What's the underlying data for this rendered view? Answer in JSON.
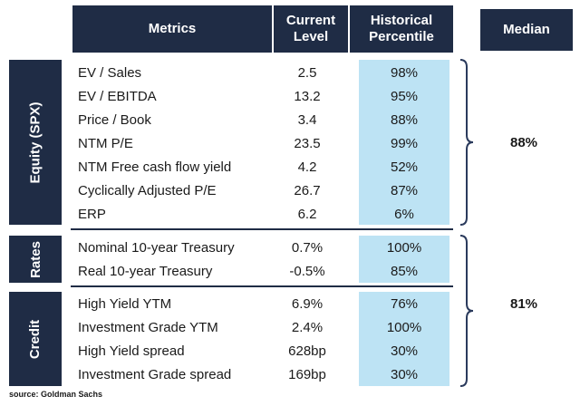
{
  "headers": {
    "metrics": "Metrics",
    "current_level_line1": "Current",
    "current_level_line2": "Level",
    "historical_percentile_line1": "Historical",
    "historical_percentile_line2": "Percentile",
    "median": "Median"
  },
  "sections": {
    "equity": {
      "label": "Equity (SPX)",
      "median": "88%",
      "rows": [
        {
          "metric": "EV / Sales",
          "current": "2.5",
          "percentile": "98%"
        },
        {
          "metric": "EV / EBITDA",
          "current": "13.2",
          "percentile": "95%"
        },
        {
          "metric": "Price / Book",
          "current": "3.4",
          "percentile": "88%"
        },
        {
          "metric": "NTM P/E",
          "current": "23.5",
          "percentile": "99%"
        },
        {
          "metric": "NTM Free cash flow yield",
          "current": "4.2",
          "percentile": "52%"
        },
        {
          "metric": "Cyclically Adjusted P/E",
          "current": "26.7",
          "percentile": "87%"
        },
        {
          "metric": "ERP",
          "current": "6.2",
          "percentile": "6%"
        }
      ]
    },
    "rates": {
      "label": "Rates",
      "rows": [
        {
          "metric": "Nominal 10-year Treasury",
          "current": "0.7%",
          "percentile": "100%"
        },
        {
          "metric": "Real 10-year Treasury",
          "current": "-0.5%",
          "percentile": "85%"
        }
      ]
    },
    "credit": {
      "label": "Credit",
      "rows": [
        {
          "metric": "High Yield YTM",
          "current": "6.9%",
          "percentile": "76%"
        },
        {
          "metric": "Investment Grade YTM",
          "current": "2.4%",
          "percentile": "100%"
        },
        {
          "metric": "High Yield spread",
          "current": "628bp",
          "percentile": "30%"
        },
        {
          "metric": "Investment Grade spread",
          "current": "169bp",
          "percentile": "30%"
        }
      ]
    },
    "rates_credit_median": "81%"
  },
  "source": "source: Goldman Sachs",
  "colors": {
    "header_bg": "#1f2c45",
    "percentile_band": "#bde3f4",
    "bracket": "#2a3a5c"
  }
}
